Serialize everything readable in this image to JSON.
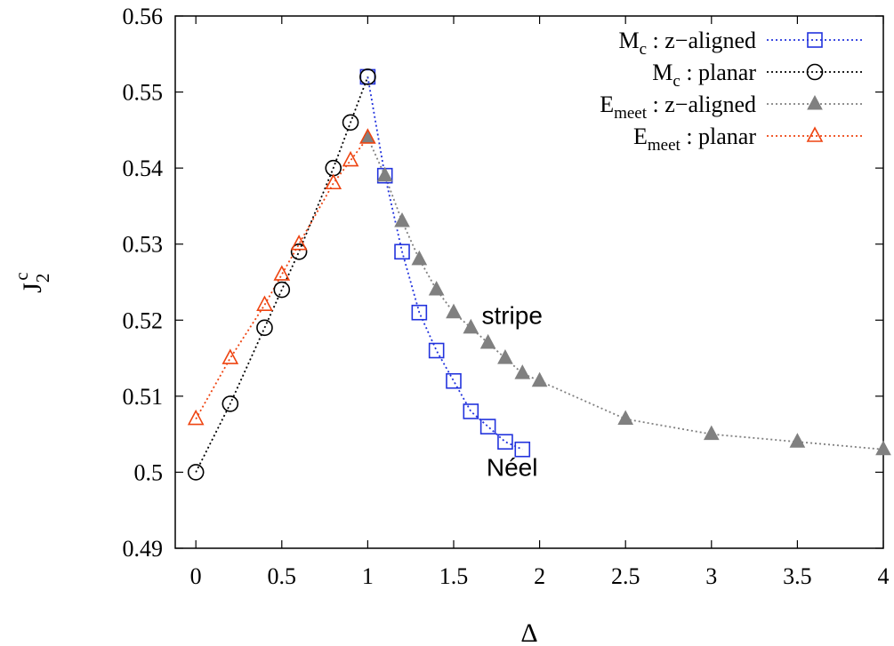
{
  "chart_data": {
    "type": "line",
    "xlabel": "Δ",
    "ylabel": {
      "main": "J",
      "sub": "2",
      "sup": "c"
    },
    "xlim": [
      -0.12,
      4.0
    ],
    "ylim": [
      0.49,
      0.56
    ],
    "xticks": [
      0,
      0.5,
      1,
      1.5,
      2,
      2.5,
      3,
      3.5,
      4
    ],
    "xtick_labels": [
      "0",
      "0.5",
      "1",
      "1.5",
      "2",
      "2.5",
      "3",
      "3.5",
      "4"
    ],
    "yticks": [
      0.49,
      0.5,
      0.51,
      0.52,
      0.53,
      0.54,
      0.55,
      0.56
    ],
    "ytick_labels": [
      "0.49",
      "0.5",
      "0.51",
      "0.52",
      "0.53",
      "0.54",
      "0.55",
      "0.56"
    ],
    "grid": false,
    "legend_position": "top-right",
    "series": [
      {
        "label_main": "M",
        "label_sub": "c",
        "label_rest": " : z−aligned",
        "color": "#2233dd",
        "marker": "open-square",
        "x": [
          1.0,
          1.1,
          1.2,
          1.3,
          1.4,
          1.5,
          1.6,
          1.7,
          1.8,
          1.9
        ],
        "y": [
          0.552,
          0.539,
          0.529,
          0.521,
          0.516,
          0.512,
          0.508,
          0.506,
          0.504,
          0.503
        ]
      },
      {
        "label_main": "M",
        "label_sub": "c",
        "label_rest": " : planar",
        "color": "#000000",
        "marker": "open-circle",
        "x": [
          0.0,
          0.2,
          0.4,
          0.5,
          0.6,
          0.8,
          0.9,
          1.0
        ],
        "y": [
          0.5,
          0.509,
          0.519,
          0.524,
          0.529,
          0.54,
          0.546,
          0.552
        ]
      },
      {
        "label_main": "E",
        "label_sub": "meet",
        "label_rest": " : z−aligned",
        "color": "#808080",
        "marker": "filled-triangle",
        "x": [
          1.0,
          1.1,
          1.2,
          1.3,
          1.4,
          1.5,
          1.6,
          1.7,
          1.8,
          1.9,
          2.0,
          2.5,
          3.0,
          3.5,
          4.0
        ],
        "y": [
          0.544,
          0.539,
          0.533,
          0.528,
          0.524,
          0.521,
          0.519,
          0.517,
          0.515,
          0.513,
          0.512,
          0.507,
          0.505,
          0.504,
          0.503
        ]
      },
      {
        "label_main": "E",
        "label_sub": "meet",
        "label_rest": " : planar",
        "color": "#ee4411",
        "marker": "open-triangle",
        "x": [
          0.0,
          0.2,
          0.4,
          0.5,
          0.6,
          0.8,
          0.9,
          1.0
        ],
        "y": [
          0.507,
          0.515,
          0.522,
          0.526,
          0.53,
          0.538,
          0.541,
          0.544
        ]
      }
    ],
    "annotations": [
      {
        "text": "stripe",
        "x": 1.84,
        "y": 0.5195
      },
      {
        "text": "Néel",
        "x": 1.84,
        "y": 0.4995
      }
    ]
  }
}
